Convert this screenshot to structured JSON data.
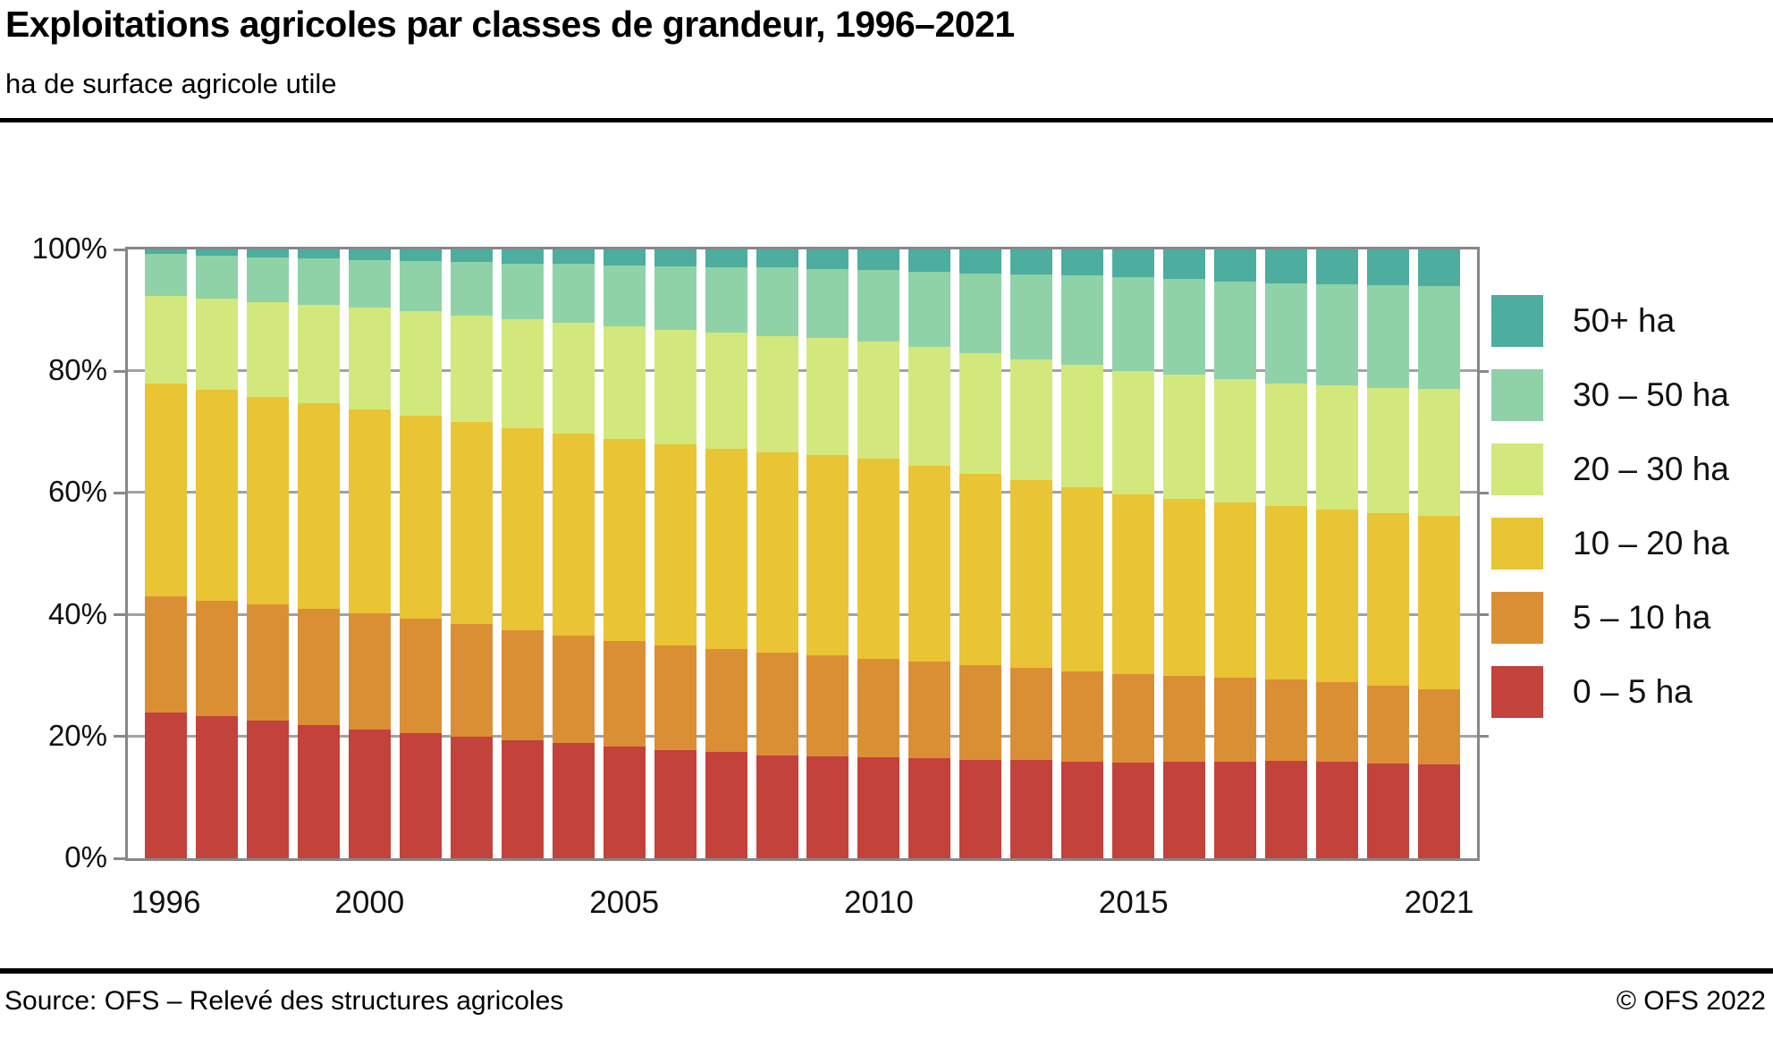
{
  "header": {
    "title": "Exploitations agricoles par classes de grandeur, 1996–2021",
    "subtitle": "ha de surface agricole utile"
  },
  "footer": {
    "source": "Source: OFS – Relevé des structures agricoles",
    "copyright": "© OFS 2022"
  },
  "chart_data": {
    "type": "bar",
    "stacked": true,
    "unit": "percent",
    "title": "Exploitations agricoles par classes de grandeur, 1996–2021",
    "subtitle": "ha de surface agricole utile",
    "x": [
      1996,
      1997,
      1998,
      1999,
      2000,
      2001,
      2002,
      2003,
      2004,
      2005,
      2006,
      2007,
      2008,
      2009,
      2010,
      2011,
      2012,
      2013,
      2014,
      2015,
      2016,
      2017,
      2018,
      2019,
      2020,
      2021
    ],
    "series": [
      {
        "name": "0 – 5 ha",
        "color": "#c3423b",
        "values": [
          24.0,
          23.3,
          22.6,
          21.9,
          21.2,
          20.6,
          20.0,
          19.4,
          18.9,
          18.3,
          17.8,
          17.4,
          16.9,
          16.8,
          16.6,
          16.4,
          16.2,
          16.1,
          15.9,
          15.7,
          15.8,
          15.9,
          16.0,
          15.8,
          15.6,
          15.4
        ]
      },
      {
        "name": "5 – 10 ha",
        "color": "#da8f35",
        "values": [
          19.0,
          19.0,
          19.1,
          19.1,
          19.1,
          18.8,
          18.4,
          18.1,
          17.7,
          17.4,
          17.2,
          17.0,
          16.8,
          16.5,
          16.2,
          15.9,
          15.5,
          15.2,
          14.8,
          14.5,
          14.1,
          13.8,
          13.4,
          13.1,
          12.7,
          12.4
        ]
      },
      {
        "name": "10 – 20 ha",
        "color": "#e9c434",
        "values": [
          35.0,
          34.6,
          34.0,
          33.8,
          33.4,
          33.3,
          33.3,
          33.2,
          33.2,
          33.1,
          33.0,
          32.9,
          32.9,
          32.9,
          32.8,
          32.1,
          31.5,
          30.8,
          30.2,
          29.5,
          29.2,
          28.8,
          28.4,
          28.4,
          28.4,
          28.5
        ]
      },
      {
        "name": "20 – 30 ha",
        "color": "#d2e87d",
        "values": [
          14.4,
          15.0,
          15.6,
          16.1,
          16.7,
          17.1,
          17.5,
          17.9,
          18.2,
          18.6,
          18.8,
          19.0,
          19.2,
          19.2,
          19.3,
          19.6,
          19.7,
          19.9,
          20.1,
          20.3,
          20.3,
          20.2,
          20.2,
          20.4,
          20.6,
          20.8
        ]
      },
      {
        "name": "30 – 50 ha",
        "color": "#8fd2a8",
        "values": [
          6.8,
          7.1,
          7.4,
          7.6,
          7.9,
          8.3,
          8.7,
          9.1,
          9.6,
          10.0,
          10.4,
          10.8,
          11.2,
          11.4,
          11.7,
          12.4,
          13.2,
          13.9,
          14.7,
          15.4,
          15.7,
          16.0,
          16.4,
          16.6,
          16.8,
          16.9
        ]
      },
      {
        "name": "50+ ha",
        "color": "#4dad9f",
        "values": [
          0.8,
          1.0,
          1.3,
          1.5,
          1.7,
          1.9,
          2.1,
          2.3,
          2.4,
          2.6,
          2.8,
          2.9,
          3.0,
          3.2,
          3.4,
          3.6,
          3.9,
          4.1,
          4.3,
          4.6,
          4.9,
          5.3,
          5.6,
          5.7,
          5.9,
          6.0
        ]
      }
    ],
    "ylim": [
      0,
      100
    ],
    "yticks": [
      0,
      20,
      40,
      60,
      80,
      100
    ],
    "ytick_labels": [
      "0%",
      "20%",
      "40%",
      "60%",
      "80%",
      "100%"
    ],
    "xticks": [
      {
        "label": "1996",
        "index": 0
      },
      {
        "label": "2000",
        "index": 4
      },
      {
        "label": "2005",
        "index": 9
      },
      {
        "label": "2010",
        "index": 14
      },
      {
        "label": "2015",
        "index": 19
      },
      {
        "label": "2021",
        "index": 25
      }
    ],
    "grid": true,
    "legend_position": "right",
    "legend_order_top_to_bottom": [
      "50+ ha",
      "30 – 50 ha",
      "20 – 30 ha",
      "10 – 20 ha",
      "5 – 10 ha",
      "0 – 5 ha"
    ]
  }
}
